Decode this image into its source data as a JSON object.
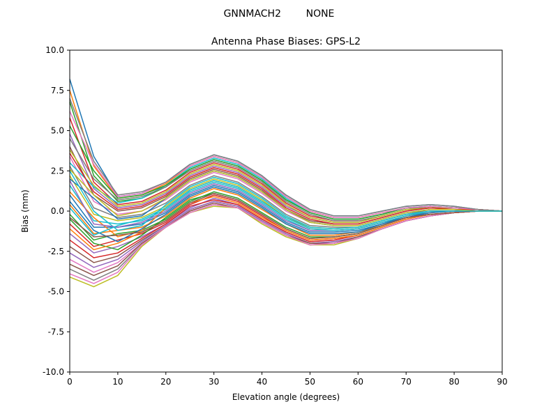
{
  "chart_data": {
    "type": "line",
    "suptitle": "GNNMACH2        NONE",
    "title": "Antenna Phase Biases: GPS-L2",
    "xlabel": "Elevation angle (degrees)",
    "ylabel": "Bias (mm)",
    "xlim": [
      0,
      90
    ],
    "ylim": [
      -10,
      10
    ],
    "x_ticks": [
      0,
      10,
      20,
      30,
      40,
      50,
      60,
      70,
      80,
      90
    ],
    "y_ticks": [
      -10.0,
      -7.5,
      -5.0,
      -2.5,
      0.0,
      2.5,
      5.0,
      7.5,
      10.0
    ],
    "grid": false,
    "x": [
      0,
      5,
      10,
      15,
      20,
      25,
      30,
      35,
      40,
      45,
      50,
      55,
      60,
      65,
      70,
      75,
      80,
      85,
      90
    ],
    "colors": [
      "#1f77b4",
      "#ff7f0e",
      "#2ca02c",
      "#d62728",
      "#9467bd",
      "#8c564b",
      "#e377c2",
      "#7f7f7f",
      "#bcbd22",
      "#17becf"
    ],
    "series": [
      {
        "values": [
          8.2,
          3.4,
          0.9,
          1.1,
          1.8,
          2.9,
          3.5,
          3.1,
          2.2,
          1.0,
          0.1,
          -0.3,
          -0.3,
          0.0,
          0.3,
          0.4,
          0.3,
          0.1,
          0.0
        ]
      },
      {
        "values": [
          7.5,
          2.8,
          0.8,
          1.0,
          1.7,
          2.8,
          3.4,
          3.0,
          2.1,
          0.9,
          0.0,
          -0.4,
          -0.4,
          -0.1,
          0.2,
          0.3,
          0.2,
          0.1,
          0.0
        ]
      },
      {
        "values": [
          6.8,
          2.2,
          0.6,
          0.8,
          1.5,
          2.6,
          3.2,
          2.8,
          1.9,
          0.7,
          -0.1,
          -0.5,
          -0.5,
          -0.2,
          0.2,
          0.3,
          0.2,
          0.1,
          0.0
        ]
      },
      {
        "values": [
          5.8,
          1.8,
          0.4,
          0.6,
          1.3,
          2.4,
          3.0,
          2.6,
          1.7,
          0.5,
          -0.3,
          -0.6,
          -0.6,
          -0.3,
          0.1,
          0.3,
          0.2,
          0.1,
          0.0
        ]
      },
      {
        "values": [
          4.8,
          1.4,
          0.2,
          0.4,
          1.1,
          2.2,
          2.8,
          2.4,
          1.5,
          0.3,
          -0.4,
          -0.7,
          -0.7,
          -0.3,
          0.1,
          0.2,
          0.2,
          0.1,
          0.0
        ]
      },
      {
        "values": [
          4.0,
          1.0,
          0.0,
          0.2,
          0.9,
          2.0,
          2.6,
          2.2,
          1.3,
          0.1,
          -0.6,
          -0.8,
          -0.8,
          -0.4,
          0.0,
          0.2,
          0.1,
          0.1,
          0.0
        ]
      },
      {
        "values": [
          3.4,
          0.6,
          -0.2,
          0.0,
          0.7,
          1.8,
          2.4,
          2.0,
          1.1,
          0.0,
          -0.7,
          -0.9,
          -0.9,
          -0.5,
          -0.1,
          0.1,
          0.1,
          0.0,
          0.0
        ]
      },
      {
        "values": [
          2.8,
          0.2,
          -0.4,
          -0.2,
          0.5,
          1.6,
          2.2,
          1.8,
          0.9,
          -0.2,
          -0.9,
          -1.0,
          -1.0,
          -0.6,
          -0.2,
          0.1,
          0.1,
          0.0,
          0.0
        ]
      },
      {
        "values": [
          2.2,
          -0.2,
          -0.6,
          -0.4,
          0.3,
          1.4,
          2.0,
          1.6,
          0.7,
          -0.4,
          -1.0,
          -1.1,
          -1.0,
          -0.6,
          -0.2,
          0.0,
          0.0,
          0.0,
          0.0
        ]
      },
      {
        "values": [
          1.6,
          -0.6,
          -0.8,
          -0.6,
          0.1,
          1.2,
          1.8,
          1.4,
          0.5,
          -0.5,
          -1.2,
          -1.2,
          -1.1,
          -0.7,
          -0.3,
          0.0,
          0.0,
          0.0,
          0.0
        ]
      },
      {
        "values": [
          1.0,
          -1.0,
          -1.0,
          -0.8,
          -0.1,
          1.0,
          1.6,
          1.2,
          0.3,
          -0.7,
          -1.3,
          -1.3,
          -1.2,
          -0.8,
          -0.3,
          -0.1,
          0.0,
          0.0,
          0.0
        ]
      },
      {
        "values": [
          0.4,
          -1.4,
          -1.2,
          -1.0,
          -0.3,
          0.8,
          1.4,
          1.0,
          0.1,
          -0.8,
          -1.5,
          -1.5,
          -1.3,
          -0.9,
          -0.4,
          -0.1,
          0.0,
          0.0,
          0.0
        ]
      },
      {
        "values": [
          -0.2,
          -1.8,
          -1.4,
          -1.2,
          -0.5,
          0.6,
          1.2,
          0.8,
          -0.1,
          -1.0,
          -1.6,
          -1.6,
          -1.4,
          -0.9,
          -0.4,
          -0.2,
          -0.1,
          0.0,
          0.0
        ]
      },
      {
        "values": [
          -0.8,
          -2.2,
          -1.8,
          -1.4,
          -0.7,
          0.4,
          1.0,
          0.6,
          -0.3,
          -1.2,
          -1.8,
          -1.7,
          -1.5,
          -1.0,
          -0.5,
          -0.2,
          -0.1,
          0.0,
          0.0
        ]
      },
      {
        "values": [
          -1.4,
          -2.6,
          -2.2,
          -1.6,
          -0.8,
          0.2,
          0.8,
          0.4,
          -0.5,
          -1.3,
          -1.9,
          -1.8,
          -1.5,
          -1.0,
          -0.5,
          -0.2,
          -0.1,
          0.0,
          0.0
        ]
      },
      {
        "values": [
          -2.2,
          -3.2,
          -2.8,
          -1.8,
          -0.9,
          0.1,
          0.6,
          0.3,
          -0.6,
          -1.4,
          -2.0,
          -1.9,
          -1.6,
          -1.1,
          -0.6,
          -0.3,
          -0.1,
          0.0,
          0.0
        ]
      },
      {
        "values": [
          -3.0,
          -3.8,
          -3.2,
          -2.0,
          -1.0,
          0.0,
          0.5,
          0.2,
          -0.7,
          -1.5,
          -2.0,
          -2.0,
          -1.6,
          -1.1,
          -0.6,
          -0.3,
          -0.1,
          0.0,
          0.0
        ]
      },
      {
        "values": [
          -3.6,
          -4.3,
          -3.6,
          -2.1,
          -1.0,
          -0.1,
          0.4,
          0.2,
          -0.7,
          -1.5,
          -2.1,
          -2.0,
          -1.7,
          -1.1,
          -0.6,
          -0.3,
          -0.1,
          0.0,
          0.0
        ]
      },
      {
        "values": [
          -4.1,
          -4.7,
          -4.0,
          -2.2,
          -1.0,
          -0.1,
          0.3,
          0.2,
          -0.8,
          -1.6,
          -2.1,
          -2.1,
          -1.7,
          -1.1,
          -0.6,
          -0.3,
          -0.1,
          0.0,
          0.0
        ]
      },
      {
        "values": [
          3.0,
          1.5,
          0.5,
          0.8,
          1.6,
          2.7,
          3.3,
          2.9,
          2.0,
          0.8,
          -0.1,
          -0.5,
          -0.5,
          -0.2,
          0.2,
          0.3,
          0.2,
          0.1,
          0.0
        ]
      },
      {
        "values": [
          2.0,
          0.8,
          -0.5,
          -0.3,
          0.8,
          1.9,
          2.5,
          2.1,
          1.2,
          0.1,
          -0.7,
          -0.9,
          -0.9,
          -0.5,
          -0.1,
          0.1,
          0.1,
          0.0,
          0.0
        ]
      },
      {
        "values": [
          1.2,
          -0.4,
          -1.6,
          -1.2,
          0.2,
          1.3,
          1.9,
          1.5,
          0.6,
          -0.4,
          -1.1,
          -1.2,
          -1.1,
          -0.7,
          -0.3,
          0.0,
          0.0,
          0.0,
          0.0
        ]
      },
      {
        "values": [
          -0.5,
          -2.0,
          -2.4,
          -1.5,
          -0.4,
          0.7,
          1.1,
          0.7,
          -0.2,
          -1.1,
          -1.7,
          -1.6,
          -1.4,
          -0.9,
          -0.4,
          -0.2,
          -0.1,
          0.0,
          0.0
        ]
      },
      {
        "values": [
          -1.8,
          -2.9,
          -2.6,
          -1.7,
          -0.8,
          0.3,
          0.7,
          0.4,
          -0.5,
          -1.3,
          -1.9,
          -1.8,
          -1.5,
          -1.0,
          -0.5,
          -0.2,
          -0.1,
          0.0,
          0.0
        ]
      },
      {
        "values": [
          -2.6,
          -3.5,
          -3.0,
          -1.9,
          -0.9,
          0.1,
          0.6,
          0.3,
          -0.6,
          -1.4,
          -2.0,
          -1.9,
          -1.6,
          -1.1,
          -0.6,
          -0.3,
          -0.1,
          0.0,
          0.0
        ]
      },
      {
        "values": [
          -3.3,
          -4.0,
          -3.4,
          -2.0,
          -1.0,
          0.0,
          0.5,
          0.2,
          -0.7,
          -1.5,
          -2.0,
          -2.0,
          -1.6,
          -1.1,
          -0.6,
          -0.3,
          -0.1,
          0.0,
          0.0
        ]
      },
      {
        "values": [
          -3.9,
          -4.5,
          -3.8,
          -2.1,
          -1.0,
          -0.1,
          0.4,
          0.2,
          -0.7,
          -1.5,
          -2.1,
          -2.0,
          -1.7,
          -1.1,
          -0.6,
          -0.3,
          -0.1,
          0.0,
          0.0
        ]
      },
      {
        "values": [
          4.5,
          2.0,
          0.7,
          0.9,
          1.5,
          2.5,
          3.1,
          2.7,
          1.8,
          0.6,
          -0.2,
          -0.6,
          -0.6,
          -0.3,
          0.1,
          0.3,
          0.2,
          0.1,
          0.0
        ]
      },
      {
        "values": [
          3.8,
          1.6,
          0.3,
          0.5,
          1.2,
          2.3,
          2.9,
          2.5,
          1.6,
          0.4,
          -0.4,
          -0.7,
          -0.7,
          -0.3,
          0.1,
          0.2,
          0.2,
          0.1,
          0.0
        ]
      },
      {
        "values": [
          2.5,
          0.0,
          -1.2,
          -0.9,
          0.4,
          1.5,
          2.1,
          1.7,
          0.8,
          -0.3,
          -1.0,
          -1.1,
          -1.0,
          -0.6,
          -0.2,
          0.0,
          0.0,
          0.0,
          0.0
        ]
      },
      {
        "values": [
          0.6,
          -1.2,
          -1.9,
          -1.1,
          -0.2,
          0.9,
          1.5,
          1.1,
          0.2,
          -0.8,
          -1.4,
          -1.4,
          -1.3,
          -0.8,
          -0.4,
          -0.1,
          0.0,
          0.0,
          0.0
        ]
      },
      {
        "values": [
          -1.1,
          -2.4,
          -2.0,
          -1.3,
          -0.6,
          0.5,
          0.9,
          0.5,
          -0.4,
          -1.2,
          -1.8,
          -1.7,
          -1.5,
          -1.0,
          -0.5,
          -0.2,
          -0.1,
          0.0,
          0.0
        ]
      },
      {
        "values": [
          5.3,
          2.5,
          0.8,
          1.0,
          1.6,
          2.6,
          3.2,
          2.8,
          1.9,
          0.7,
          -0.1,
          -0.5,
          -0.5,
          -0.2,
          0.2,
          0.3,
          0.2,
          0.1,
          0.0
        ]
      },
      {
        "values": [
          3.6,
          1.2,
          0.1,
          0.3,
          1.0,
          2.1,
          2.7,
          2.3,
          1.4,
          0.2,
          -0.5,
          -0.8,
          -0.8,
          -0.4,
          0.0,
          0.2,
          0.1,
          0.1,
          0.0
        ]
      },
      {
        "values": [
          1.9,
          -0.8,
          -1.0,
          -0.7,
          0.0,
          1.1,
          1.7,
          1.3,
          0.4,
          -0.6,
          -1.2,
          -1.2,
          -1.1,
          -0.7,
          -0.3,
          0.0,
          0.0,
          0.0,
          0.0
        ]
      },
      {
        "values": [
          -0.4,
          -1.6,
          -1.5,
          -1.3,
          -0.6,
          0.5,
          1.1,
          0.7,
          -0.2,
          -1.1,
          -1.7,
          -1.6,
          -1.4,
          -0.9,
          -0.4,
          -0.2,
          -0.1,
          0.0,
          0.0
        ]
      },
      {
        "values": [
          6.2,
          2.9,
          0.9,
          1.1,
          1.8,
          2.8,
          3.4,
          3.0,
          2.1,
          0.9,
          0.0,
          -0.4,
          -0.4,
          -0.1,
          0.2,
          0.3,
          0.2,
          0.1,
          0.0
        ]
      },
      {
        "values": [
          7.0,
          3.1,
          1.0,
          1.2,
          1.8,
          2.9,
          3.5,
          3.1,
          2.2,
          1.0,
          0.1,
          -0.3,
          -0.3,
          0.0,
          0.3,
          0.4,
          0.3,
          0.1,
          0.0
        ]
      },
      {
        "values": [
          2.6,
          1.0,
          -0.3,
          0.0,
          0.8,
          1.9,
          2.5,
          2.1,
          1.2,
          0.1,
          -0.7,
          -0.9,
          -0.9,
          -0.5,
          -0.1,
          0.1,
          0.1,
          0.0,
          0.0
        ]
      },
      {
        "values": [
          0.2,
          -1.5,
          -0.9,
          -0.5,
          0.2,
          1.3,
          1.9,
          1.5,
          0.6,
          -0.4,
          -1.1,
          -1.2,
          -1.1,
          -0.7,
          -0.3,
          0.0,
          0.0,
          0.0,
          0.0
        ]
      }
    ]
  }
}
